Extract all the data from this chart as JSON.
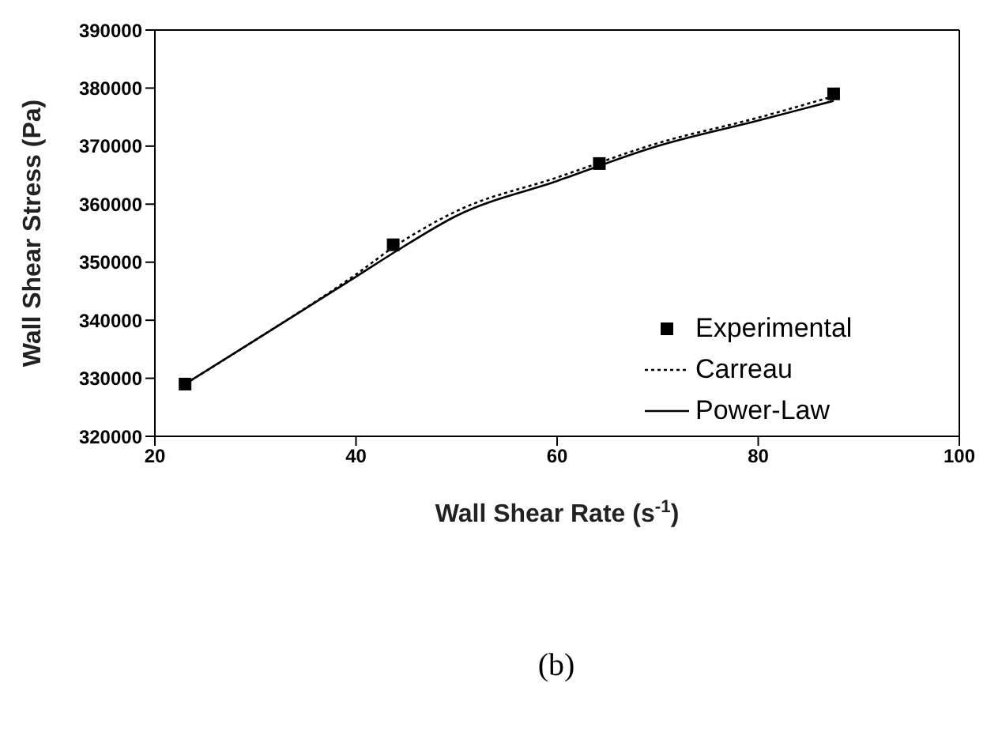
{
  "chart_data": {
    "type": "line",
    "xlabel": "Wall Shear Rate (s$^{-1}$)",
    "ylabel": "Wall Shear Stress (Pa)",
    "xlim": [
      20,
      100
    ],
    "xticks": [
      20,
      40,
      60,
      80,
      100
    ],
    "ylim": [
      320000,
      390000
    ],
    "yticks": [
      320000,
      330000,
      340000,
      350000,
      360000,
      370000,
      380000,
      390000
    ],
    "grid": false,
    "legend": "right",
    "annotations": [
      "(b)"
    ],
    "series": [
      {
        "name": "Experimental",
        "type": "scatter",
        "marker": "square",
        "color": "#000000",
        "x": [
          23,
          43.7,
          64.2,
          87.5
        ],
        "values": [
          329000,
          353000,
          367000,
          379000
        ]
      },
      {
        "name": "Carreau",
        "line_style": "dotted",
        "marker": "none",
        "color": "#000000",
        "x": [
          23,
          30,
          40,
          44,
          50,
          60,
          70,
          80,
          87.5
        ],
        "values": [
          329000,
          336600,
          347900,
          352900,
          358800,
          364600,
          370500,
          374900,
          378600
        ]
      },
      {
        "name": "Power-Law",
        "line_style": "solid",
        "marker": "none",
        "color": "#000000",
        "x": [
          23,
          30,
          40,
          44,
          50,
          60,
          70,
          80,
          87.5
        ],
        "values": [
          329000,
          336600,
          347500,
          351900,
          358000,
          364000,
          370000,
          374400,
          377800
        ]
      }
    ]
  }
}
